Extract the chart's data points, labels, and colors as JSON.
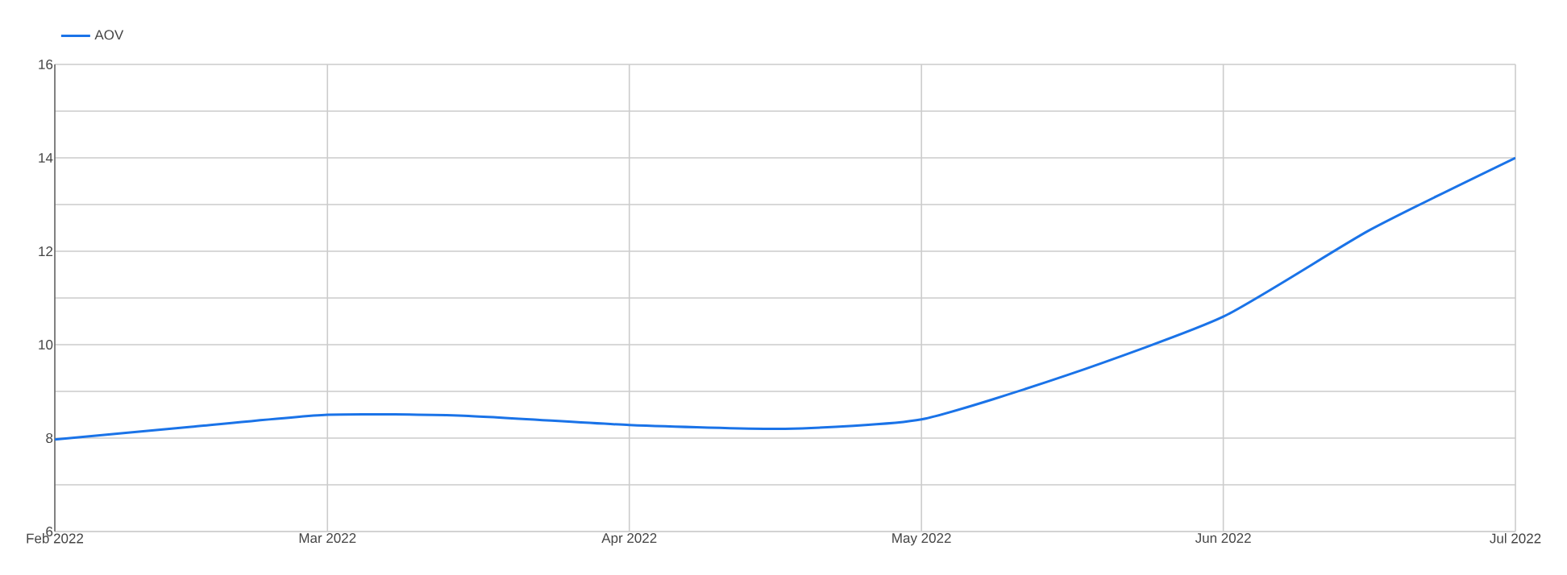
{
  "chart_data": {
    "type": "line",
    "x": [
      "2022-02-01",
      "2022-02-15",
      "2022-03-01",
      "2022-03-15",
      "2022-04-01",
      "2022-04-17",
      "2022-05-01",
      "2022-05-16",
      "2022-06-01",
      "2022-06-16",
      "2022-07-01"
    ],
    "series": [
      {
        "name": "AOV",
        "color": "#1a73e8",
        "values": [
          7.97,
          8.24,
          8.5,
          8.48,
          8.28,
          8.2,
          8.4,
          9.35,
          10.6,
          12.45,
          14.0
        ]
      }
    ],
    "xlim": [
      "2022-02-01",
      "2022-07-01"
    ],
    "xticks": [
      {
        "value": "2022-02-01",
        "label": "Feb 2022"
      },
      {
        "value": "2022-03-01",
        "label": "Mar 2022"
      },
      {
        "value": "2022-04-01",
        "label": "Apr 2022"
      },
      {
        "value": "2022-05-01",
        "label": "May 2022"
      },
      {
        "value": "2022-06-01",
        "label": "Jun 2022"
      },
      {
        "value": "2022-07-01",
        "label": "Jul 2022"
      }
    ],
    "ylim": [
      6,
      16
    ],
    "yticks": [
      6,
      {
        "value": 7,
        "label": null
      },
      8,
      {
        "value": 9,
        "label": null
      },
      10,
      {
        "value": 11,
        "label": null
      },
      12,
      {
        "value": 13,
        "label": null
      },
      14,
      {
        "value": 15,
        "label": null
      },
      16
    ],
    "grid": true,
    "legend": "top left",
    "marker": "none",
    "line_style": "solid"
  }
}
